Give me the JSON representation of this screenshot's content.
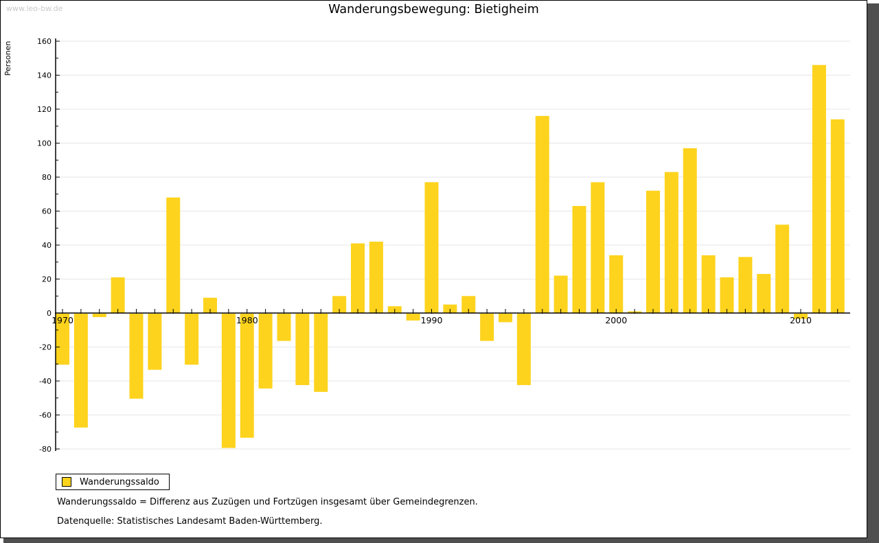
{
  "watermark": "www.leo-bw.de",
  "title": "Wanderungsbewegung: Bietigheim",
  "legend": {
    "label": "Wanderungssaldo",
    "swatch_color": "#fdd31d"
  },
  "footnotes": [
    "Wanderungssaldo = Differenz aus Zuzügen und Fortzügen insgesamt über Gemeindegrenzen.",
    "Datenquelle: Statistisches Landesamt Baden-Württemberg."
  ],
  "chart_data": {
    "type": "bar",
    "title": "Wanderungsbewegung: Bietigheim",
    "xlabel": "",
    "ylabel": "Personen",
    "ylim": [
      -80,
      160
    ],
    "ytick_step": 20,
    "ytick_minor_step": 10,
    "grid": true,
    "gridline_color": "#e6e6e6",
    "bar_color": "#fdd31d",
    "series_name": "Wanderungssaldo",
    "legend_position": "bottom-left",
    "xticks_labeled": [
      1970,
      1980,
      1990,
      2000,
      2010
    ],
    "x": [
      1970,
      1971,
      1972,
      1973,
      1974,
      1975,
      1976,
      1977,
      1978,
      1979,
      1980,
      1981,
      1982,
      1983,
      1984,
      1985,
      1986,
      1987,
      1988,
      1989,
      1990,
      1991,
      1992,
      1993,
      1994,
      1995,
      1996,
      1997,
      1998,
      1999,
      2000,
      2001,
      2002,
      2003,
      2004,
      2005,
      2006,
      2007,
      2008,
      2009,
      2010,
      2011,
      2012
    ],
    "values": [
      -30,
      -67,
      -2,
      21,
      -50,
      -33,
      68,
      -30,
      9,
      -79,
      -73,
      -44,
      -16,
      -42,
      -46,
      10,
      41,
      42,
      4,
      -4,
      77,
      5,
      10,
      -16,
      -5,
      -42,
      116,
      22,
      63,
      77,
      34,
      1,
      72,
      83,
      97,
      34,
      21,
      33,
      23,
      52,
      -3,
      146,
      114
    ]
  }
}
